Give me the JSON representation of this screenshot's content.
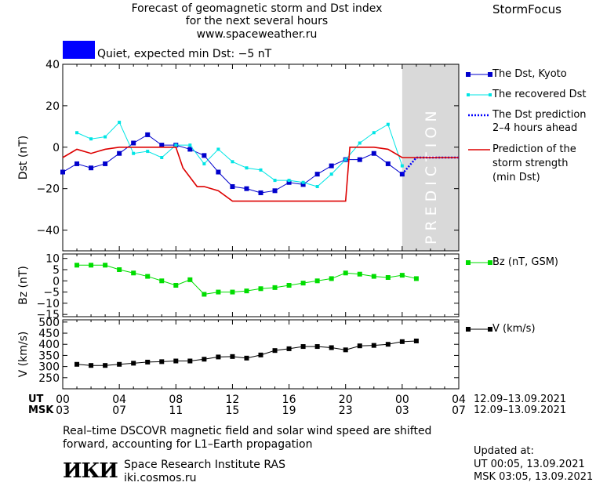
{
  "header": {
    "title_line1": "Forecast of geomagnetic storm and Dst index",
    "title_line2": "for the next several hours",
    "url": "www.spaceweather.ru",
    "brand": "StormFocus",
    "status_text": "Quiet, expected min Dst: −5 nT",
    "status_color": "#0000ff"
  },
  "legend": {
    "dst_kyoto": "The Dst, Kyoto",
    "dst_recovered": "The recovered Dst",
    "dst_prediction_l1": "The Dst prediction",
    "dst_prediction_l2": "2–4 hours ahead",
    "storm_l1": "Prediction of the",
    "storm_l2": "storm strength",
    "storm_l3": "(min Dst)",
    "bz": "Bz (nT, GSM)",
    "v": "V (km/s)"
  },
  "prediction_label": "PREDICTION",
  "time_axis": {
    "ut_label": "UT",
    "msk_label": "MSK",
    "ut_ticks": [
      "00",
      "04",
      "08",
      "12",
      "16",
      "20",
      "00",
      "04"
    ],
    "msk_ticks": [
      "03",
      "07",
      "11",
      "15",
      "19",
      "23",
      "03",
      "07"
    ],
    "ut_date_range": "12.09–13.09.2021",
    "msk_date_range": "12.09–13.09.2021"
  },
  "footer": {
    "note_line1": "Real–time DSCOVR magnetic field and solar wind speed are shifted",
    "note_line2": "forward, accounting for L1–Earth propagation",
    "logo_text": "ИКИ",
    "institute": "Space Research Institute RAS",
    "site": "iki.cosmos.ru",
    "updated_label": "Updated at:",
    "updated_ut": "UT   00:05, 13.09.2021",
    "updated_msk": "MSK 03:05, 13.09.2021"
  },
  "colors": {
    "dst_kyoto": "#0000cc",
    "dst_recovered": "#00e5e5",
    "dst_prediction": "#0000ff",
    "storm": "#dd0000",
    "bz": "#00dd00",
    "v": "#000000",
    "prediction_band": "#d9d9d9"
  },
  "chart_data": [
    {
      "type": "line",
      "name": "dst",
      "xlabel": "",
      "ylabel": "Dst (nT)",
      "xlim": [
        0,
        28
      ],
      "ylim": [
        -50,
        40
      ],
      "yticks": [
        40,
        20,
        0,
        -20,
        -40
      ],
      "prediction_start": 24,
      "series": [
        {
          "name": "The Dst, Kyoto",
          "marker": "square",
          "x": [
            0,
            1,
            2,
            3,
            4,
            5,
            6,
            7,
            8,
            9,
            10,
            11,
            12,
            13,
            14,
            15,
            16,
            17,
            18,
            19,
            20,
            21,
            22,
            23,
            24
          ],
          "y": [
            -12,
            -8,
            -10,
            -8,
            -3,
            2,
            6,
            1,
            1,
            -1,
            -4,
            -12,
            -19,
            -20,
            -22,
            -21,
            -17,
            -18,
            -13,
            -9,
            -6,
            -6,
            -3,
            -8,
            -13
          ]
        },
        {
          "name": "The recovered Dst",
          "marker": "dot",
          "x": [
            1,
            2,
            3,
            4,
            5,
            6,
            7,
            8,
            9,
            10,
            11,
            12,
            13,
            14,
            15,
            16,
            17,
            18,
            19,
            20,
            21,
            22,
            23,
            24
          ],
          "y": [
            7,
            4,
            5,
            12,
            -3,
            -2,
            -5,
            1,
            1,
            -8,
            -1,
            -7,
            -10,
            -11,
            -16,
            -16,
            -17,
            -19,
            -13,
            -6,
            2,
            7,
            11,
            -9
          ]
        },
        {
          "name": "The Dst prediction 2–4 hours ahead",
          "style": "dotted",
          "x": [
            24,
            25,
            26,
            27,
            28
          ],
          "y": [
            -13,
            -5,
            -5,
            -5,
            -5
          ]
        },
        {
          "name": "Prediction of the storm strength (min Dst)",
          "style": "solid",
          "x": [
            0,
            1,
            2,
            3,
            4,
            5,
            6,
            7,
            8,
            8.5,
            9.5,
            10,
            11,
            12,
            13,
            14,
            15,
            16,
            17,
            18,
            19,
            20,
            20.3,
            21,
            22,
            23,
            24,
            25,
            26,
            27,
            28
          ],
          "y": [
            -5,
            -1,
            -3,
            -1,
            0,
            0,
            0,
            0,
            0,
            -10,
            -19,
            -19,
            -21,
            -26,
            -26,
            -26,
            -26,
            -26,
            -26,
            -26,
            -26,
            -26,
            0,
            0,
            0,
            -1,
            -5,
            -5,
            -5,
            -5,
            -5
          ]
        }
      ]
    },
    {
      "type": "line",
      "name": "bz",
      "ylabel": "Bz (nT)",
      "xlim": [
        0,
        28
      ],
      "ylim": [
        -16,
        12
      ],
      "yticks": [
        10,
        5,
        0,
        -5,
        -10,
        -15
      ],
      "series": [
        {
          "name": "Bz (nT, GSM)",
          "marker": "square",
          "x": [
            1,
            2,
            3,
            4,
            5,
            6,
            7,
            8,
            9,
            10,
            11,
            12,
            13,
            14,
            15,
            16,
            17,
            18,
            19,
            20,
            21,
            22,
            23,
            24,
            25
          ],
          "y": [
            7,
            7,
            7,
            5,
            3.5,
            2,
            0,
            -2,
            0.5,
            -6,
            -5,
            -5,
            -4.5,
            -3.5,
            -3,
            -2,
            -1,
            0,
            1,
            3.5,
            3,
            2,
            1.5,
            2.5,
            1
          ]
        }
      ]
    },
    {
      "type": "line",
      "name": "v",
      "ylabel": "V (km/s)",
      "xlim": [
        0,
        28
      ],
      "ylim": [
        200,
        510
      ],
      "yticks": [
        500,
        450,
        400,
        350,
        300,
        250
      ],
      "series": [
        {
          "name": "V (km/s)",
          "marker": "square",
          "x": [
            1,
            2,
            3,
            4,
            5,
            6,
            7,
            8,
            9,
            10,
            11,
            12,
            13,
            14,
            15,
            16,
            17,
            18,
            19,
            20,
            21,
            22,
            23,
            24,
            25
          ],
          "y": [
            310,
            305,
            305,
            310,
            315,
            320,
            322,
            325,
            325,
            333,
            343,
            345,
            338,
            352,
            372,
            380,
            390,
            390,
            385,
            375,
            393,
            395,
            400,
            412,
            415
          ]
        }
      ]
    }
  ]
}
